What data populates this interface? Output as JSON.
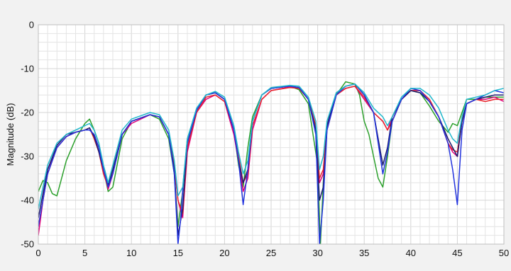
{
  "chart_data": {
    "type": "line",
    "title": "",
    "xlabel": "",
    "ylabel": "Magnitude (dB)",
    "xlim": [
      0,
      50
    ],
    "ylim": [
      -50,
      0
    ],
    "xticks": [
      0,
      5,
      10,
      15,
      20,
      25,
      30,
      35,
      40,
      45,
      50
    ],
    "yticks": [
      0,
      -10,
      -20,
      -30,
      -40,
      -50
    ],
    "xtick_labels": [
      "0",
      "5",
      "10",
      "15",
      "20",
      "25",
      "30",
      "35",
      "40",
      "45",
      "50"
    ],
    "ytick_labels": [
      "0",
      "-10",
      "-20",
      "-30",
      "-40",
      "-50"
    ],
    "grid": true,
    "legend": "none",
    "series": [
      {
        "color": "#2ca02c",
        "x": [
          0,
          0.5,
          1,
          1.5,
          2,
          3,
          4,
          5,
          5.5,
          6,
          6.5,
          7,
          7.5,
          8,
          9,
          10,
          12,
          13,
          14,
          14.6,
          15,
          15.5,
          16,
          17,
          18,
          19,
          20,
          21,
          21.5,
          22,
          22.5,
          23,
          24,
          25,
          27,
          28,
          29,
          30,
          30.3,
          30.6,
          31,
          32,
          33,
          34,
          34.5,
          35,
          35.5,
          36,
          36.5,
          37,
          37.5,
          38,
          39,
          40,
          41,
          42,
          43,
          44,
          44.5,
          45,
          45.5,
          46,
          47,
          48,
          49,
          50
        ],
        "y": [
          -38,
          -35.5,
          -36,
          -38.5,
          -39,
          -31,
          -26,
          -22.5,
          -21.5,
          -24,
          -27,
          -33,
          -38,
          -37,
          -26,
          -22,
          -20.5,
          -21.5,
          -26,
          -34,
          -46,
          -38,
          -26,
          -19.5,
          -16,
          -15.5,
          -17,
          -24,
          -32,
          -37,
          -28,
          -21,
          -16,
          -14.5,
          -14,
          -14.8,
          -18,
          -32,
          -50,
          -36,
          -24,
          -16,
          -13,
          -13.5,
          -16,
          -22,
          -25,
          -30,
          -35,
          -37,
          -30,
          -22,
          -17,
          -15,
          -15.5,
          -18.5,
          -22,
          -24.5,
          -22.5,
          -23,
          -20,
          -17,
          -17,
          -16.5,
          -16.5,
          -16.5
        ]
      },
      {
        "color": "#e0007a",
        "x": [
          0,
          0.5,
          1,
          2,
          3,
          4,
          5,
          5.5,
          6,
          6.5,
          7,
          7.5,
          8,
          9,
          10,
          12,
          13,
          14,
          14.6,
          15,
          15.5,
          16,
          17,
          18,
          19,
          20,
          21,
          21.5,
          22,
          22.5,
          23,
          24,
          25,
          27,
          28,
          29,
          29.8,
          30.2,
          30.6,
          31,
          32,
          33,
          34,
          35,
          36,
          37,
          37.5,
          38,
          39,
          40,
          41,
          42,
          43,
          44,
          44.5,
          45,
          45.5,
          46,
          47,
          48,
          49,
          50
        ],
        "y": [
          -48,
          -40,
          -33,
          -28,
          -25.5,
          -24.5,
          -24,
          -24,
          -25,
          -28,
          -33,
          -37.5,
          -34,
          -25,
          -22.5,
          -20.5,
          -21,
          -25,
          -32,
          -40,
          -44,
          -29,
          -20,
          -17,
          -16,
          -17.5,
          -25,
          -31,
          -38,
          -35,
          -24,
          -17,
          -15,
          -14.2,
          -14.5,
          -17,
          -24,
          -36,
          -34,
          -24,
          -16,
          -14.5,
          -14,
          -17,
          -20,
          -22,
          -24,
          -21,
          -17,
          -15,
          -15,
          -17,
          -21,
          -27,
          -29,
          -30,
          -22,
          -18,
          -17,
          -17,
          -16.5,
          -17.5
        ]
      },
      {
        "color": "#e8242c",
        "x": [
          0,
          1,
          2,
          3,
          4,
          5,
          5.5,
          6,
          6.5,
          7,
          7.5,
          8,
          9,
          10,
          12,
          13,
          14,
          14.6,
          15,
          15.5,
          16,
          17,
          18,
          19,
          20,
          21,
          21.5,
          22,
          22.5,
          23,
          24,
          25,
          27,
          28,
          29,
          29.8,
          30.2,
          30.6,
          31,
          32,
          33,
          34,
          35,
          36,
          37,
          37.5,
          38,
          39,
          40,
          41,
          42,
          43,
          44,
          44.5,
          45,
          45.5,
          46,
          47,
          48,
          49,
          50
        ],
        "y": [
          -46,
          -34,
          -28,
          -25.5,
          -24.5,
          -24,
          -23.5,
          -26,
          -29,
          -34,
          -37,
          -33,
          -25,
          -22,
          -20.5,
          -21,
          -25,
          -32,
          -40,
          -43,
          -28,
          -20,
          -16.5,
          -16,
          -17.5,
          -24,
          -30,
          -36,
          -34,
          -23,
          -17,
          -15,
          -14.3,
          -14.5,
          -17,
          -23,
          -35,
          -33,
          -23,
          -16,
          -14.5,
          -14,
          -16.5,
          -20,
          -22,
          -24,
          -22,
          -17,
          -15,
          -15,
          -17,
          -21,
          -27,
          -28.5,
          -29,
          -22,
          -18,
          -17,
          -17.5,
          -17,
          -17
        ]
      },
      {
        "color": "#1a1a6e",
        "x": [
          0,
          1,
          2,
          3,
          4,
          5,
          5.5,
          6,
          6.5,
          7,
          7.5,
          8,
          9,
          10,
          12,
          13,
          14,
          14.6,
          15,
          15.5,
          16,
          17,
          18,
          19,
          20,
          21,
          21.5,
          22,
          22.5,
          23,
          24,
          25,
          27,
          28,
          29,
          29.8,
          30.2,
          30.6,
          31,
          32,
          33,
          34,
          35,
          36,
          36.5,
          37,
          37.5,
          38,
          39,
          40,
          41,
          42,
          43,
          44,
          44.5,
          45,
          45.5,
          46,
          47,
          48,
          49,
          50
        ],
        "y": [
          -44,
          -33,
          -27.5,
          -25,
          -24.5,
          -24,
          -23.5,
          -25.5,
          -29,
          -33,
          -36.5,
          -33,
          -25,
          -22,
          -20.5,
          -21,
          -25,
          -33,
          -48,
          -42,
          -27,
          -19.5,
          -16,
          -15.5,
          -17,
          -24,
          -31,
          -36,
          -33,
          -22,
          -16,
          -14.5,
          -14,
          -14.3,
          -17,
          -24,
          -40,
          -37,
          -23,
          -15.5,
          -14,
          -13.5,
          -16,
          -20,
          -26,
          -32,
          -28,
          -21,
          -17,
          -15,
          -15.5,
          -17.5,
          -21,
          -26,
          -28,
          -30,
          -22,
          -18,
          -17,
          -16.5,
          -16,
          -16
        ]
      },
      {
        "color": "#2233dd",
        "x": [
          0,
          1,
          2,
          3,
          4,
          5,
          5.5,
          6,
          6.5,
          7,
          7.5,
          8,
          9,
          10,
          12,
          13,
          14,
          14.6,
          15,
          15.3,
          15.6,
          16,
          17,
          18,
          19,
          20,
          21,
          21.5,
          22,
          22.5,
          23,
          24,
          25,
          27,
          28,
          29,
          29.8,
          30.2,
          30.6,
          31,
          32,
          33,
          34,
          35,
          36,
          36.5,
          37,
          37.5,
          38,
          39,
          40,
          41,
          42,
          43,
          44,
          44.5,
          45,
          45.5,
          46,
          47,
          48,
          49,
          50
        ],
        "y": [
          -46,
          -34,
          -28,
          -25.5,
          -24.5,
          -24,
          -24,
          -25,
          -28,
          -33,
          -37,
          -34,
          -25,
          -22,
          -20.5,
          -21,
          -25,
          -34,
          -50,
          -44,
          -35,
          -27,
          -19.5,
          -16,
          -15.5,
          -17,
          -24,
          -31,
          -41,
          -33,
          -22,
          -16,
          -14.5,
          -14,
          -14.3,
          -17,
          -25,
          -50,
          -40,
          -24,
          -16,
          -14,
          -13.5,
          -16,
          -20,
          -27,
          -34,
          -29,
          -22,
          -17,
          -14.5,
          -15,
          -17.5,
          -21,
          -27,
          -33,
          -41,
          -24,
          -18,
          -17,
          -16,
          -15,
          -15.5
        ]
      },
      {
        "color": "#22b8cc",
        "x": [
          0,
          1,
          2,
          3,
          4,
          5,
          5.5,
          6,
          6.5,
          7,
          7.5,
          8,
          9,
          10,
          12,
          13,
          14,
          14.6,
          15,
          15.5,
          16,
          17,
          18,
          19,
          20,
          21,
          21.5,
          22,
          22.5,
          23,
          24,
          25,
          27,
          28,
          29,
          29.8,
          30.2,
          30.6,
          31,
          32,
          33,
          34,
          35,
          36,
          37,
          37.5,
          38,
          39,
          40,
          41,
          42,
          43,
          44,
          44.5,
          45,
          45.5,
          46,
          47,
          48,
          49,
          50
        ],
        "y": [
          -42,
          -32,
          -27,
          -25,
          -24,
          -23,
          -22.5,
          -24,
          -27,
          -32,
          -36,
          -32,
          -24,
          -21.5,
          -20,
          -20.5,
          -24,
          -31,
          -39,
          -37,
          -26,
          -19,
          -16,
          -15.2,
          -16.5,
          -23,
          -29,
          -34,
          -31,
          -22,
          -16,
          -14.3,
          -13.8,
          -14,
          -16.5,
          -22,
          -33,
          -30,
          -22,
          -15.5,
          -14,
          -13.5,
          -15.5,
          -19,
          -21,
          -23,
          -21,
          -16.5,
          -14.5,
          -14.5,
          -16,
          -19,
          -24,
          -26,
          -27,
          -21,
          -17,
          -16.5,
          -16,
          -15,
          -14.5
        ]
      }
    ]
  }
}
